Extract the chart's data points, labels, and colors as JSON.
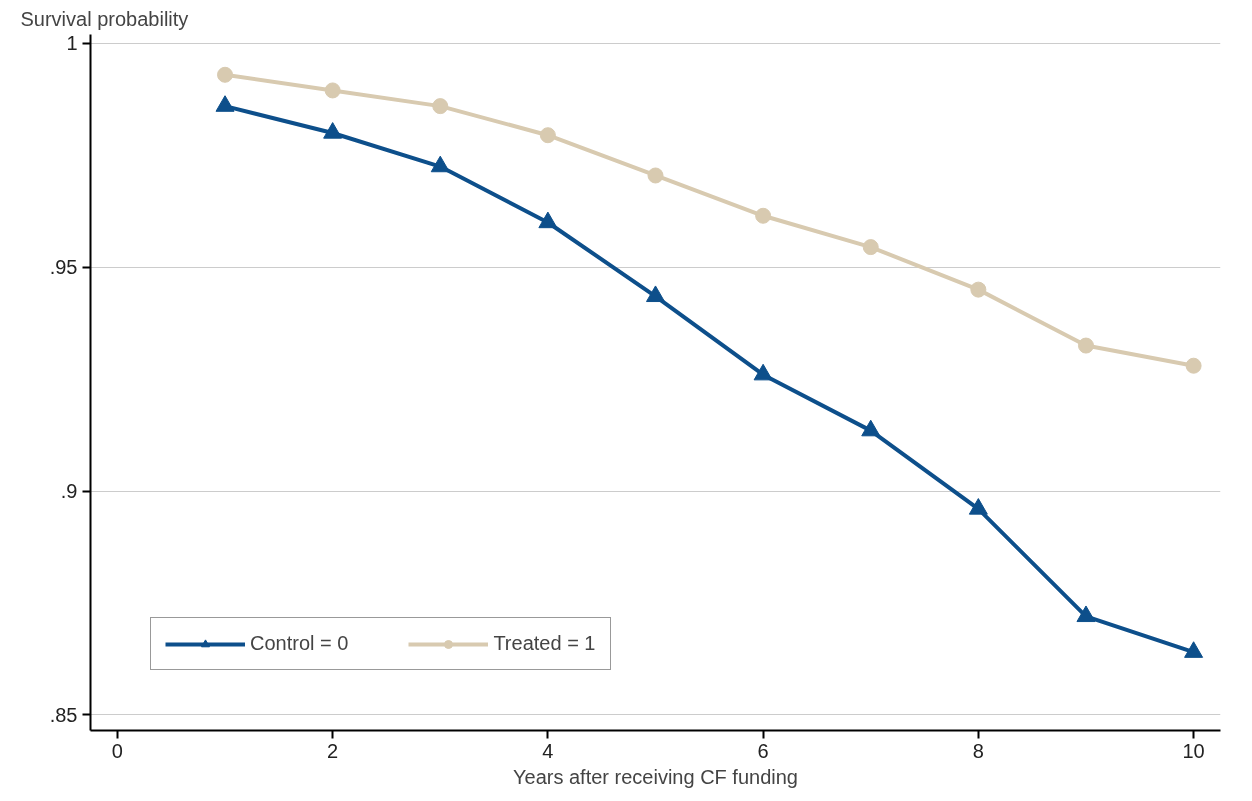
{
  "chart_data": {
    "type": "line",
    "ylabel": "Survival probability",
    "xlabel": "Years after receiving CF funding",
    "x": [
      1,
      2,
      3,
      4,
      5,
      6,
      7,
      8,
      9,
      10
    ],
    "series": [
      {
        "name": "Control = 0",
        "color": "#0d4f8b",
        "marker": "triangle",
        "values": [
          0.986,
          0.98,
          0.9725,
          0.96,
          0.9435,
          0.926,
          0.9135,
          0.896,
          0.872,
          0.864
        ]
      },
      {
        "name": "Treated = 1",
        "color": "#d8cab0",
        "marker": "circle",
        "values": [
          0.993,
          0.9895,
          0.986,
          0.9795,
          0.9705,
          0.9615,
          0.9545,
          0.945,
          0.9325,
          0.928
        ]
      }
    ],
    "xlim": [
      -0.25,
      10.25
    ],
    "ylim": [
      0.8465,
      1.002
    ],
    "xticks": [
      0,
      2,
      4,
      6,
      8,
      10
    ],
    "yticks": [
      {
        "value": 0.85,
        "label": ".85"
      },
      {
        "value": 0.9,
        "label": ".9"
      },
      {
        "value": 0.95,
        "label": ".95"
      },
      {
        "value": 1,
        "label": "1"
      }
    ],
    "grid": "y",
    "legend": "bottom left",
    "line_style": "solid"
  }
}
